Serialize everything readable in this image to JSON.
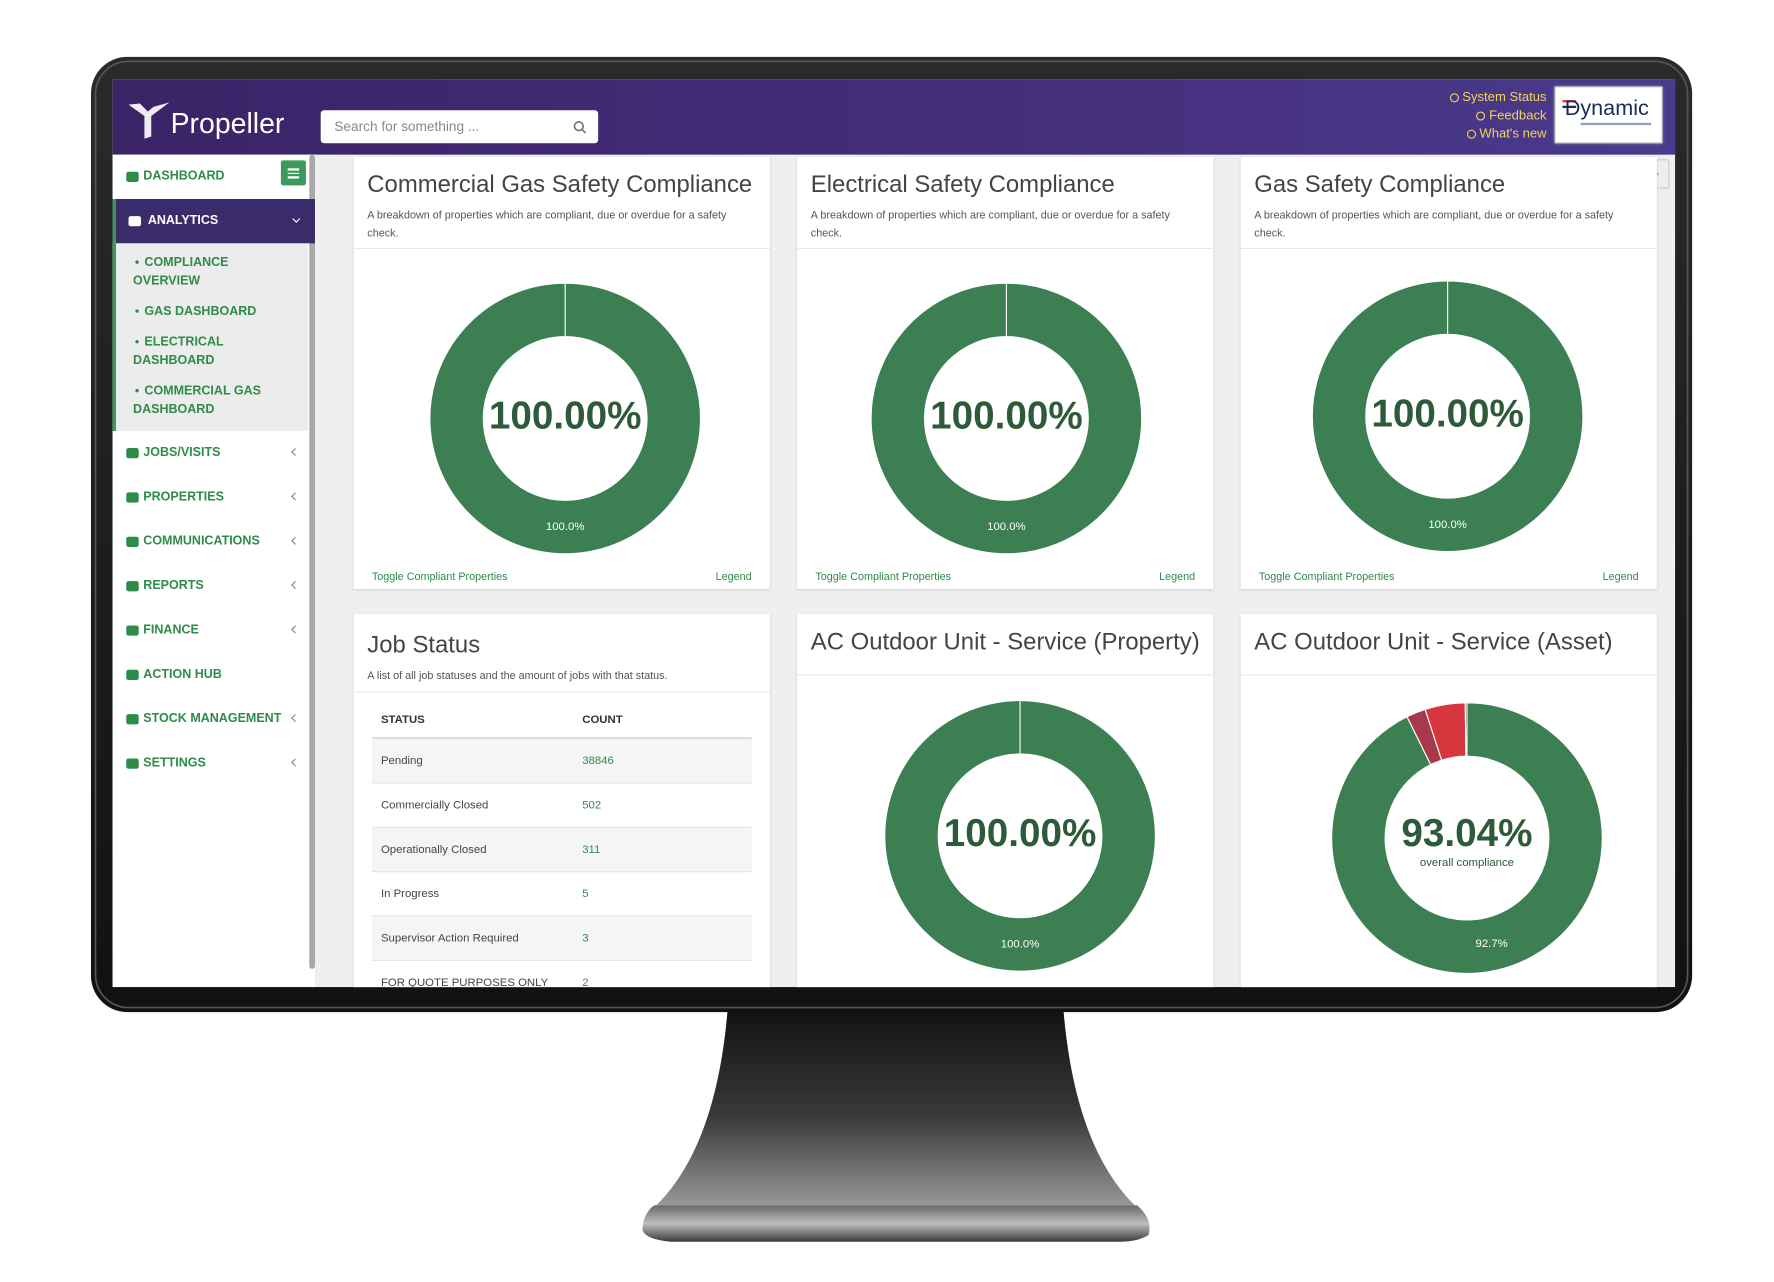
{
  "header": {
    "brand": "Propeller",
    "search_placeholder": "Search for something ...",
    "links": [
      "System Status",
      "Feedback",
      "What's new"
    ],
    "client_logo": "Dynamic"
  },
  "sidebar": {
    "items": [
      {
        "label": "DASHBOARD",
        "expandable": false
      },
      {
        "label": "ANALYTICS",
        "expandable": true,
        "active": true,
        "children": [
          "COMPLIANCE OVERVIEW",
          "GAS DASHBOARD",
          "ELECTRICAL DASHBOARD",
          "COMMERCIAL GAS DASHBOARD"
        ]
      },
      {
        "label": "JOBS/VISITS",
        "expandable": true
      },
      {
        "label": "PROPERTIES",
        "expandable": true
      },
      {
        "label": "COMMUNICATIONS",
        "expandable": true
      },
      {
        "label": "REPORTS",
        "expandable": true
      },
      {
        "label": "FINANCE",
        "expandable": true
      },
      {
        "label": "ACTION HUB",
        "expandable": false
      },
      {
        "label": "STOCK MANAGEMENT",
        "expandable": true
      },
      {
        "label": "SETTINGS",
        "expandable": true
      }
    ]
  },
  "panels": [
    {
      "title": "Commercial Gas Safety Compliance",
      "description": "A breakdown of properties which are compliant, due or overdue for a safety check.",
      "center_label": "100.00%",
      "segments": [
        {
          "value": 100,
          "label": "100.0%",
          "color": "#3b7f53"
        }
      ],
      "links": [
        "Toggle Compliant Properties",
        "Legend"
      ]
    },
    {
      "title": "Electrical Safety Compliance",
      "description": "A breakdown of properties which are compliant, due or overdue for a safety check.",
      "center_label": "100.00%",
      "segments": [
        {
          "value": 100,
          "label": "100.0%",
          "color": "#3b7f53"
        }
      ],
      "links": [
        "Toggle Compliant Properties",
        "Legend"
      ]
    },
    {
      "title": "Gas Safety Compliance",
      "description": "A breakdown of properties which are compliant, due or overdue for a safety check.",
      "center_label": "100.00%",
      "segments": [
        {
          "value": 100,
          "label": "100.0%",
          "color": "#3b7f53"
        }
      ],
      "links": [
        "Toggle Compliant Properties",
        "Legend"
      ]
    },
    {
      "title": "AC Outdoor Unit - Service (Property)",
      "center_label": "100.00%",
      "segments": [
        {
          "value": 100,
          "label": "100.0%",
          "color": "#3b7f53"
        }
      ]
    },
    {
      "title": "AC Outdoor Unit - Service (Asset)",
      "center_label": "93.04%",
      "center_sublabel": "overall compliance",
      "segments": [
        {
          "value": 92.7,
          "label": "92.7%",
          "color": "#3b7f53"
        },
        {
          "value": 2.3,
          "color": "#a63a4c"
        },
        {
          "value": 4.8,
          "color": "#d8363f"
        },
        {
          "value": 0.2,
          "color": "#4a4a4a"
        }
      ]
    }
  ],
  "job_status": {
    "title": "Job Status",
    "description": "A list of all job statuses and the amount of jobs with that status.",
    "columns": [
      "STATUS",
      "COUNT"
    ],
    "rows": [
      [
        "Pending",
        38846
      ],
      [
        "Commercially Closed",
        502
      ],
      [
        "Operationally Closed",
        311
      ],
      [
        "In Progress",
        5
      ],
      [
        "Supervisor Action Required",
        3
      ],
      [
        "FOR QUOTE PURPOSES ONLY",
        2
      ]
    ]
  }
}
